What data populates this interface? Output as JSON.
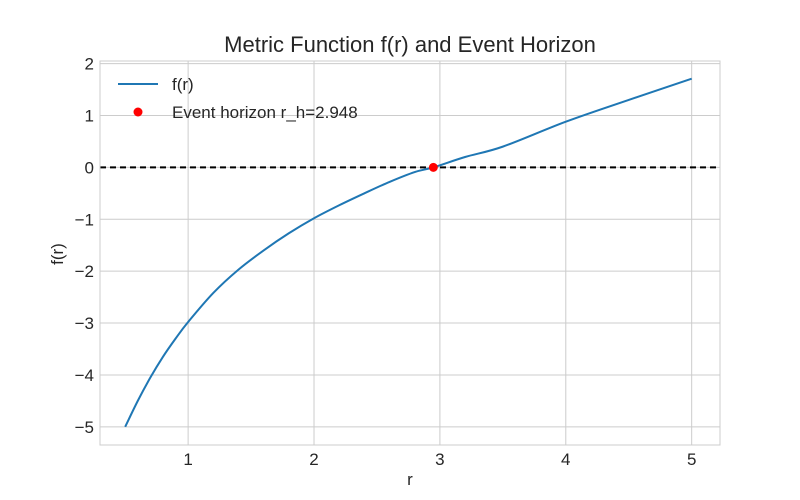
{
  "chart_data": {
    "type": "line",
    "title": "Metric Function f(r) and Event Horizon",
    "xlabel": "r",
    "ylabel": "f(r)",
    "xlim": [
      0.3,
      5.225
    ],
    "ylim": [
      -5.35,
      2.05
    ],
    "x_ticks": [
      1,
      2,
      3,
      4,
      5
    ],
    "x_tick_labels": [
      "1",
      "2",
      "3",
      "4",
      "5"
    ],
    "y_ticks": [
      2,
      1,
      0,
      -1,
      -2,
      -3,
      -4,
      -5
    ],
    "y_tick_labels": [
      "2",
      "1",
      "0",
      "−1",
      "−2",
      "−3",
      "−4",
      "−5"
    ],
    "grid": true,
    "legend_position": "top-left",
    "series": [
      {
        "name": "f(r)",
        "color": "#1f77b4",
        "x": [
          0.5,
          0.6,
          0.7,
          0.8,
          0.9,
          1.0,
          1.2,
          1.4,
          1.6,
          1.8,
          2.0,
          2.2,
          2.4,
          2.6,
          2.8,
          2.948,
          3.2,
          3.5,
          4.0,
          4.5,
          5.0
        ],
        "y": [
          -5.0,
          -4.5,
          -4.05,
          -3.65,
          -3.3,
          -2.98,
          -2.42,
          -1.97,
          -1.6,
          -1.27,
          -0.98,
          -0.73,
          -0.5,
          -0.28,
          -0.09,
          0.0,
          0.2,
          0.4,
          0.88,
          1.3,
          1.71
        ]
      }
    ],
    "reference_line": {
      "y": 0,
      "color": "#000000",
      "style": "dashed"
    },
    "event_horizon": {
      "label": "Event horizon r_h=2.948",
      "x": 2.948,
      "y": 0,
      "color": "#ff0000"
    }
  }
}
